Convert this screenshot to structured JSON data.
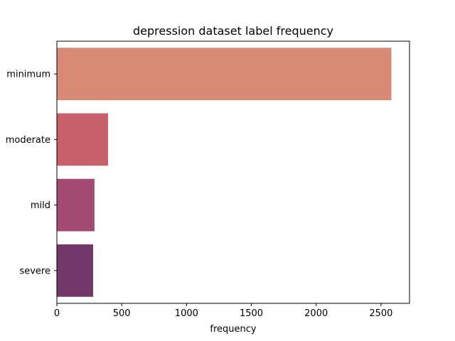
{
  "chart_data": {
    "type": "bar",
    "orientation": "horizontal",
    "title": "depression dataset label frequency",
    "xlabel": "frequency",
    "ylabel": "",
    "categories": [
      "minimum",
      "moderate",
      "mild",
      "severe"
    ],
    "values": [
      2580,
      395,
      290,
      280
    ],
    "colors": [
      "#d98a74",
      "#c8606c",
      "#a34b73",
      "#723869"
    ],
    "xlim": [
      0,
      2720
    ],
    "xticks": [
      0,
      500,
      1000,
      1500,
      2000,
      2500
    ],
    "grid": false,
    "legend": "none"
  }
}
